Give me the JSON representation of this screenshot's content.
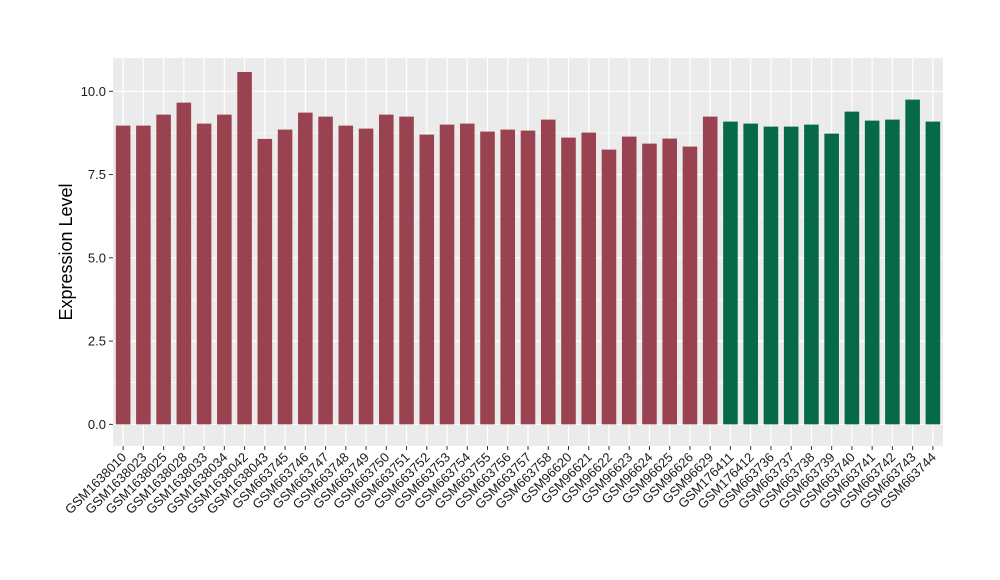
{
  "chart_data": {
    "type": "bar",
    "title": "",
    "xlabel": "",
    "ylabel": "Expression Level",
    "ylim": [
      0,
      10.8
    ],
    "yticks": [
      "0.0",
      "2.5",
      "5.0",
      "7.5",
      "10.0"
    ],
    "grid": true,
    "legend": "none",
    "colors": {
      "group1": "#9a4350",
      "group2": "#066a47",
      "panel": "#ebebeb",
      "grid": "#ffffff"
    },
    "categories": [
      "GSM1638010",
      "GSM1638023",
      "GSM1638025",
      "GSM1638028",
      "GSM1638033",
      "GSM1638034",
      "GSM1638042",
      "GSM1638043",
      "GSM663745",
      "GSM663746",
      "GSM663747",
      "GSM663748",
      "GSM663749",
      "GSM663750",
      "GSM663751",
      "GSM663752",
      "GSM663753",
      "GSM663754",
      "GSM663755",
      "GSM663756",
      "GSM663757",
      "GSM663758",
      "GSM96620",
      "GSM96621",
      "GSM96622",
      "GSM96623",
      "GSM96624",
      "GSM96625",
      "GSM96626",
      "GSM96629",
      "GSM176411",
      "GSM176412",
      "GSM663736",
      "GSM663737",
      "GSM663738",
      "GSM663739",
      "GSM663740",
      "GSM663741",
      "GSM663742",
      "GSM663743",
      "GSM663744"
    ],
    "values": [
      8.97,
      8.97,
      9.3,
      9.66,
      9.03,
      9.3,
      10.58,
      8.57,
      8.85,
      9.36,
      9.24,
      8.97,
      8.88,
      9.3,
      9.24,
      8.7,
      9.0,
      9.03,
      8.79,
      8.85,
      8.82,
      9.15,
      8.61,
      8.76,
      8.25,
      8.64,
      8.43,
      8.58,
      8.34,
      9.24,
      9.09,
      9.03,
      8.94,
      8.94,
      9.0,
      8.73,
      9.39,
      9.12,
      9.15,
      9.75,
      9.09
    ],
    "groups": [
      "group1",
      "group1",
      "group1",
      "group1",
      "group1",
      "group1",
      "group1",
      "group1",
      "group1",
      "group1",
      "group1",
      "group1",
      "group1",
      "group1",
      "group1",
      "group1",
      "group1",
      "group1",
      "group1",
      "group1",
      "group1",
      "group1",
      "group1",
      "group1",
      "group1",
      "group1",
      "group1",
      "group1",
      "group1",
      "group1",
      "group2",
      "group2",
      "group2",
      "group2",
      "group2",
      "group2",
      "group2",
      "group2",
      "group2",
      "group2",
      "group2"
    ]
  }
}
